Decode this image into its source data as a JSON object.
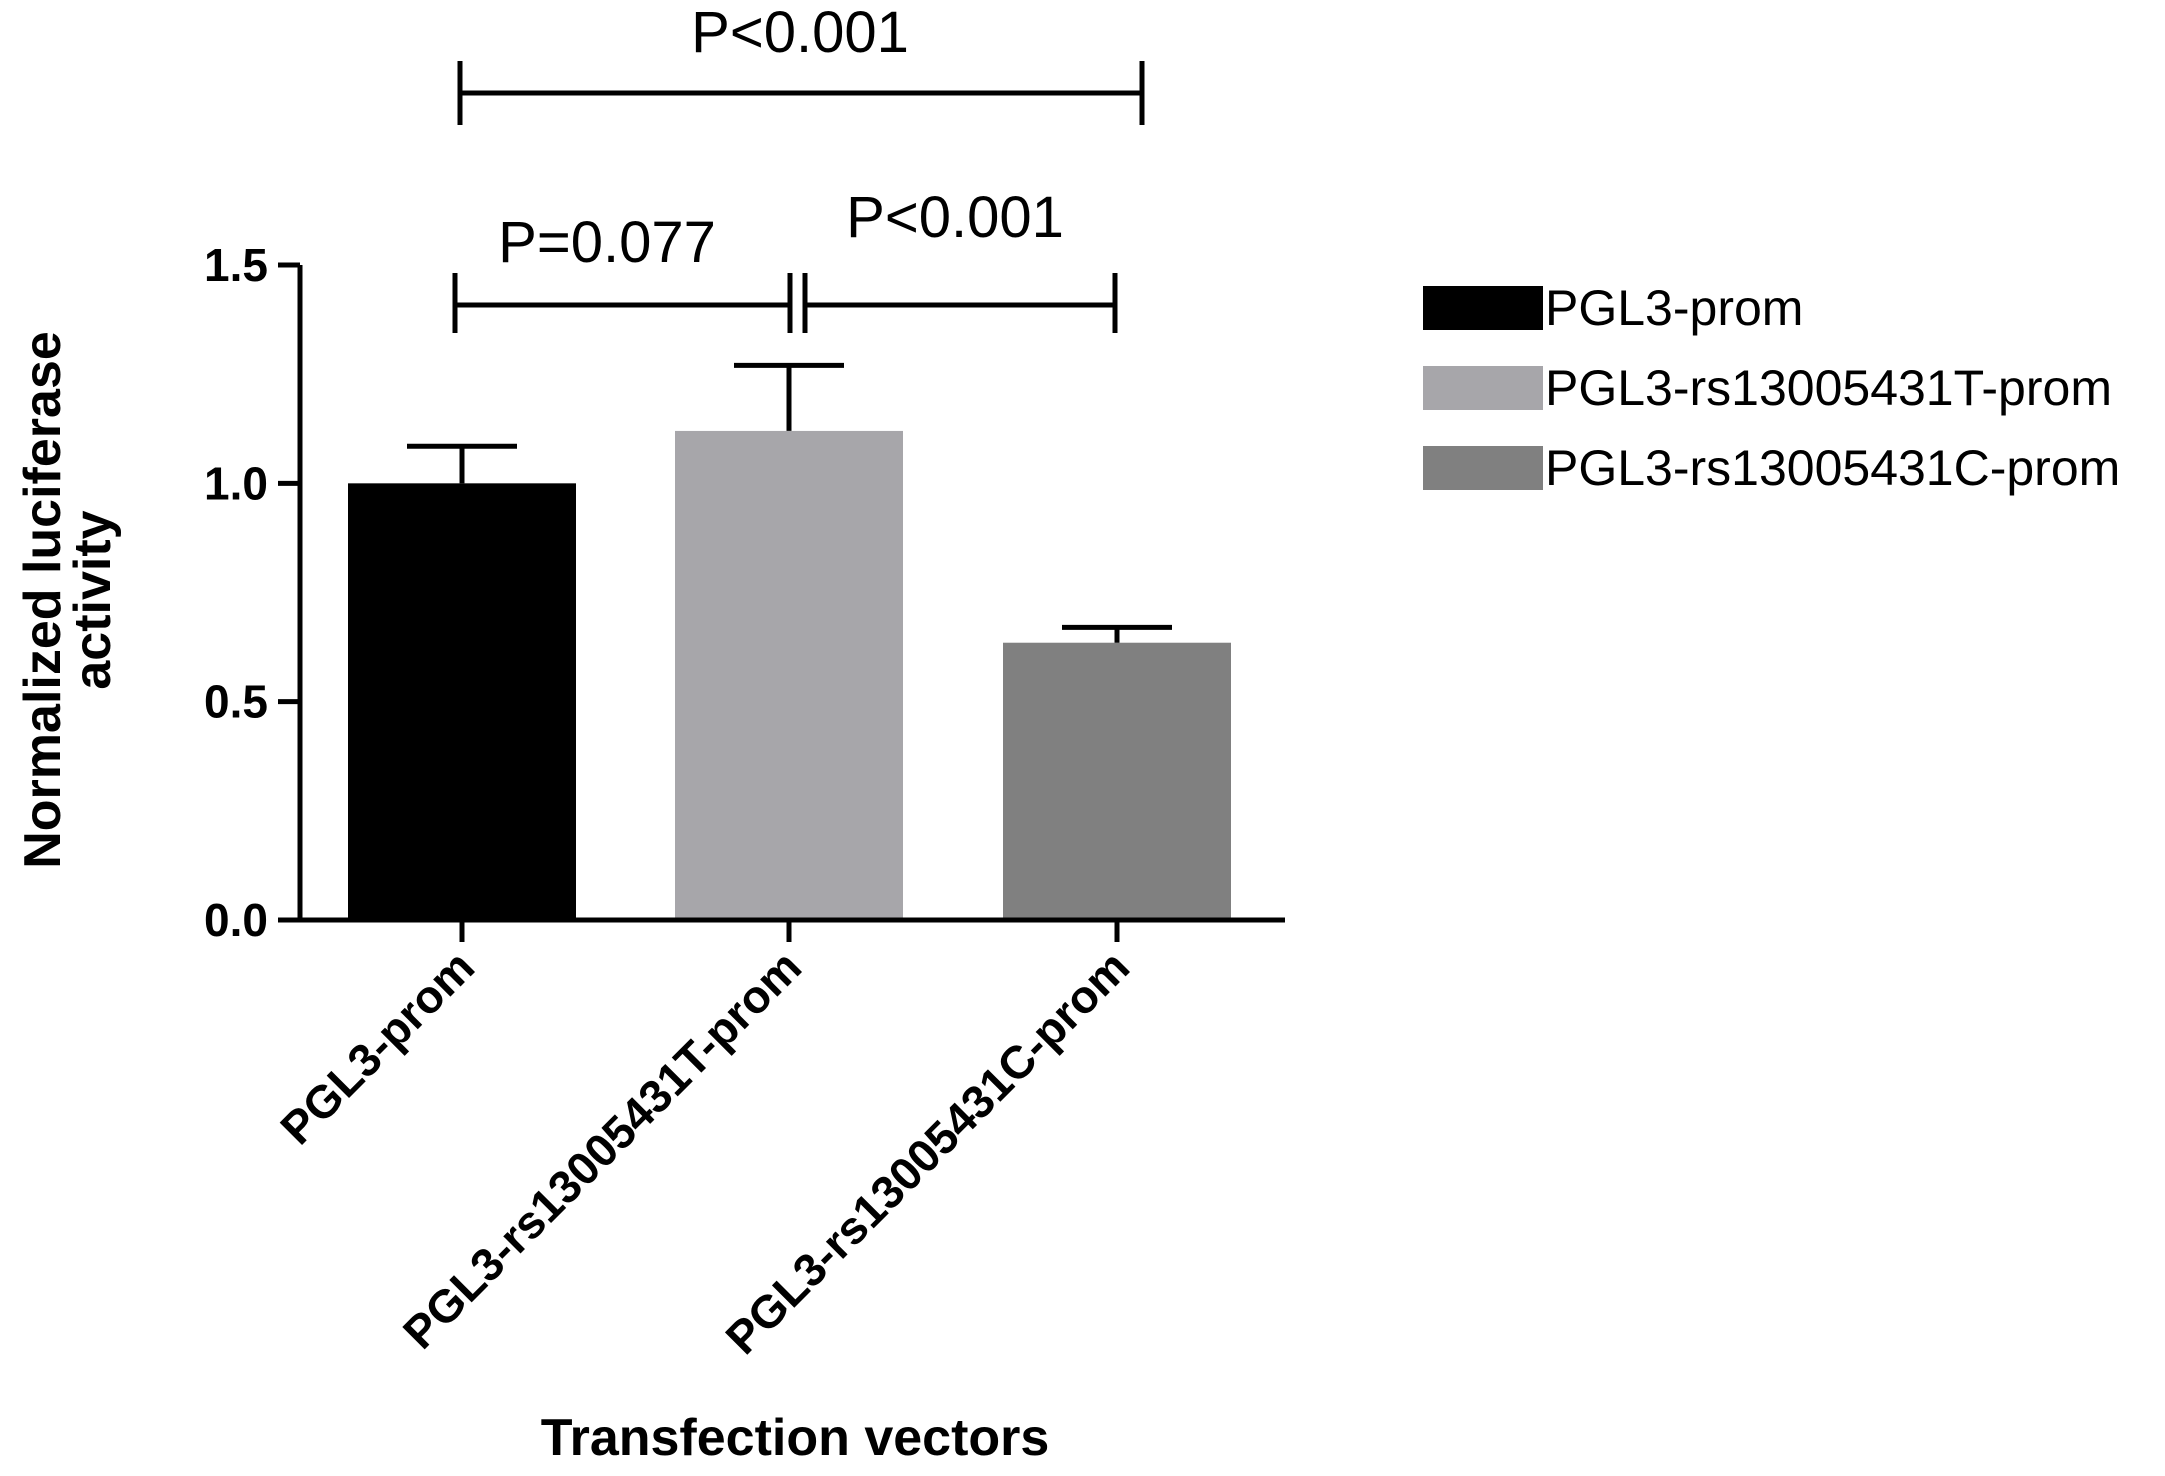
{
  "chart_data": {
    "type": "bar",
    "title": "",
    "xlabel": "Transfection vectors",
    "ylabel_lines": [
      "Normalized luciferase",
      "activity"
    ],
    "ylim": [
      0,
      1.5
    ],
    "yticks": [
      "0.0",
      "0.5",
      "1.0",
      "1.5"
    ],
    "ytick_values": [
      0,
      0.5,
      1.0,
      1.5
    ],
    "categories": [
      "PGL3-prom",
      "PGL3-rs13005431T-prom",
      "PGL3-rs13005431C-prom"
    ],
    "values": [
      1.0,
      1.12,
      0.635
    ],
    "error_upper": [
      0.085,
      0.15,
      0.035
    ],
    "colors": [
      "#000000",
      "#a7a6aa",
      "#808080"
    ],
    "legend": {
      "position": "right",
      "entries": [
        "PGL3-prom",
        "PGL3-rs13005431T-prom",
        "PGL3-rs13005431C-prom"
      ]
    },
    "significance": [
      {
        "from": 0,
        "to": 1,
        "label": "P=0.077"
      },
      {
        "from": 1,
        "to": 2,
        "label": "P<0.001"
      },
      {
        "from": 0,
        "to": 2,
        "label": "P<0.001"
      }
    ],
    "grid": false
  }
}
